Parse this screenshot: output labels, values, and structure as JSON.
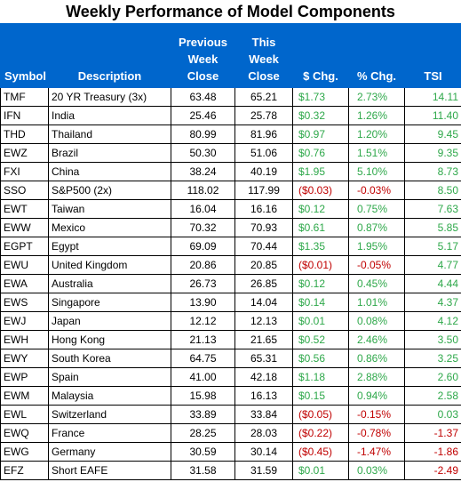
{
  "title": "Weekly Performance of Model Components",
  "colors": {
    "header_bg": "#0066cc",
    "header_text": "#ffffff",
    "positive": "#2ea84a",
    "negative": "#c00000"
  },
  "headers": {
    "symbol": "Symbol",
    "description": "Description",
    "prev_close": [
      "Previous",
      "Week",
      "Close"
    ],
    "this_close": [
      "This",
      "Week",
      "Close"
    ],
    "dollar_chg": "$ Chg.",
    "pct_chg": "% Chg.",
    "tsi": "TSI"
  },
  "rows": [
    {
      "symbol": "TMF",
      "description": "20 YR Treasury (3x)",
      "prev": "63.48",
      "this": "65.21",
      "chg": "$1.73",
      "pct": "2.73%",
      "tsi": "14.11",
      "dir": "pos",
      "tsi_dir": "pos"
    },
    {
      "symbol": "IFN",
      "description": "India",
      "prev": "25.46",
      "this": "25.78",
      "chg": "$0.32",
      "pct": "1.26%",
      "tsi": "11.40",
      "dir": "pos",
      "tsi_dir": "pos"
    },
    {
      "symbol": "THD",
      "description": "Thailand",
      "prev": "80.99",
      "this": "81.96",
      "chg": "$0.97",
      "pct": "1.20%",
      "tsi": "9.45",
      "dir": "pos",
      "tsi_dir": "pos"
    },
    {
      "symbol": "EWZ",
      "description": "Brazil",
      "prev": "50.30",
      "this": "51.06",
      "chg": "$0.76",
      "pct": "1.51%",
      "tsi": "9.35",
      "dir": "pos",
      "tsi_dir": "pos"
    },
    {
      "symbol": "FXI",
      "description": "China",
      "prev": "38.24",
      "this": "40.19",
      "chg": "$1.95",
      "pct": "5.10%",
      "tsi": "8.73",
      "dir": "pos",
      "tsi_dir": "pos"
    },
    {
      "symbol": "SSO",
      "description": "S&P500 (2x)",
      "prev": "118.02",
      "this": "117.99",
      "chg": "($0.03)",
      "pct": "-0.03%",
      "tsi": "8.50",
      "dir": "neg",
      "tsi_dir": "pos"
    },
    {
      "symbol": "EWT",
      "description": "Taiwan",
      "prev": "16.04",
      "this": "16.16",
      "chg": "$0.12",
      "pct": "0.75%",
      "tsi": "7.63",
      "dir": "pos",
      "tsi_dir": "pos"
    },
    {
      "symbol": "EWW",
      "description": "Mexico",
      "prev": "70.32",
      "this": "70.93",
      "chg": "$0.61",
      "pct": "0.87%",
      "tsi": "5.85",
      "dir": "pos",
      "tsi_dir": "pos"
    },
    {
      "symbol": "EGPT",
      "description": "Egypt",
      "prev": "69.09",
      "this": "70.44",
      "chg": "$1.35",
      "pct": "1.95%",
      "tsi": "5.17",
      "dir": "pos",
      "tsi_dir": "pos"
    },
    {
      "symbol": "EWU",
      "description": "United Kingdom",
      "prev": "20.86",
      "this": "20.85",
      "chg": "($0.01)",
      "pct": "-0.05%",
      "tsi": "4.77",
      "dir": "neg",
      "tsi_dir": "pos"
    },
    {
      "symbol": "EWA",
      "description": "Australia",
      "prev": "26.73",
      "this": "26.85",
      "chg": "$0.12",
      "pct": "0.45%",
      "tsi": "4.44",
      "dir": "pos",
      "tsi_dir": "pos"
    },
    {
      "symbol": "EWS",
      "description": "Singapore",
      "prev": "13.90",
      "this": "14.04",
      "chg": "$0.14",
      "pct": "1.01%",
      "tsi": "4.37",
      "dir": "pos",
      "tsi_dir": "pos"
    },
    {
      "symbol": "EWJ",
      "description": "Japan",
      "prev": "12.12",
      "this": "12.13",
      "chg": "$0.01",
      "pct": "0.08%",
      "tsi": "4.12",
      "dir": "pos",
      "tsi_dir": "pos"
    },
    {
      "symbol": "EWH",
      "description": "Hong Kong",
      "prev": "21.13",
      "this": "21.65",
      "chg": "$0.52",
      "pct": "2.46%",
      "tsi": "3.50",
      "dir": "pos",
      "tsi_dir": "pos"
    },
    {
      "symbol": "EWY",
      "description": "South Korea",
      "prev": "64.75",
      "this": "65.31",
      "chg": "$0.56",
      "pct": "0.86%",
      "tsi": "3.25",
      "dir": "pos",
      "tsi_dir": "pos"
    },
    {
      "symbol": "EWP",
      "description": "Spain",
      "prev": "41.00",
      "this": "42.18",
      "chg": "$1.18",
      "pct": "2.88%",
      "tsi": "2.60",
      "dir": "pos",
      "tsi_dir": "pos"
    },
    {
      "symbol": "EWM",
      "description": "Malaysia",
      "prev": "15.98",
      "this": "16.13",
      "chg": "$0.15",
      "pct": "0.94%",
      "tsi": "2.58",
      "dir": "pos",
      "tsi_dir": "pos"
    },
    {
      "symbol": "EWL",
      "description": "Switzerland",
      "prev": "33.89",
      "this": "33.84",
      "chg": "($0.05)",
      "pct": "-0.15%",
      "tsi": "0.03",
      "dir": "neg",
      "tsi_dir": "pos"
    },
    {
      "symbol": "EWQ",
      "description": "France",
      "prev": "28.25",
      "this": "28.03",
      "chg": "($0.22)",
      "pct": "-0.78%",
      "tsi": "-1.37",
      "dir": "neg",
      "tsi_dir": "neg"
    },
    {
      "symbol": "EWG",
      "description": "Germany",
      "prev": "30.59",
      "this": "30.14",
      "chg": "($0.45)",
      "pct": "-1.47%",
      "tsi": "-1.86",
      "dir": "neg",
      "tsi_dir": "neg"
    },
    {
      "symbol": "EFZ",
      "description": "Short EAFE",
      "prev": "31.58",
      "this": "31.59",
      "chg": "$0.01",
      "pct": "0.03%",
      "tsi": "-2.49",
      "dir": "pos",
      "tsi_dir": "neg"
    }
  ]
}
